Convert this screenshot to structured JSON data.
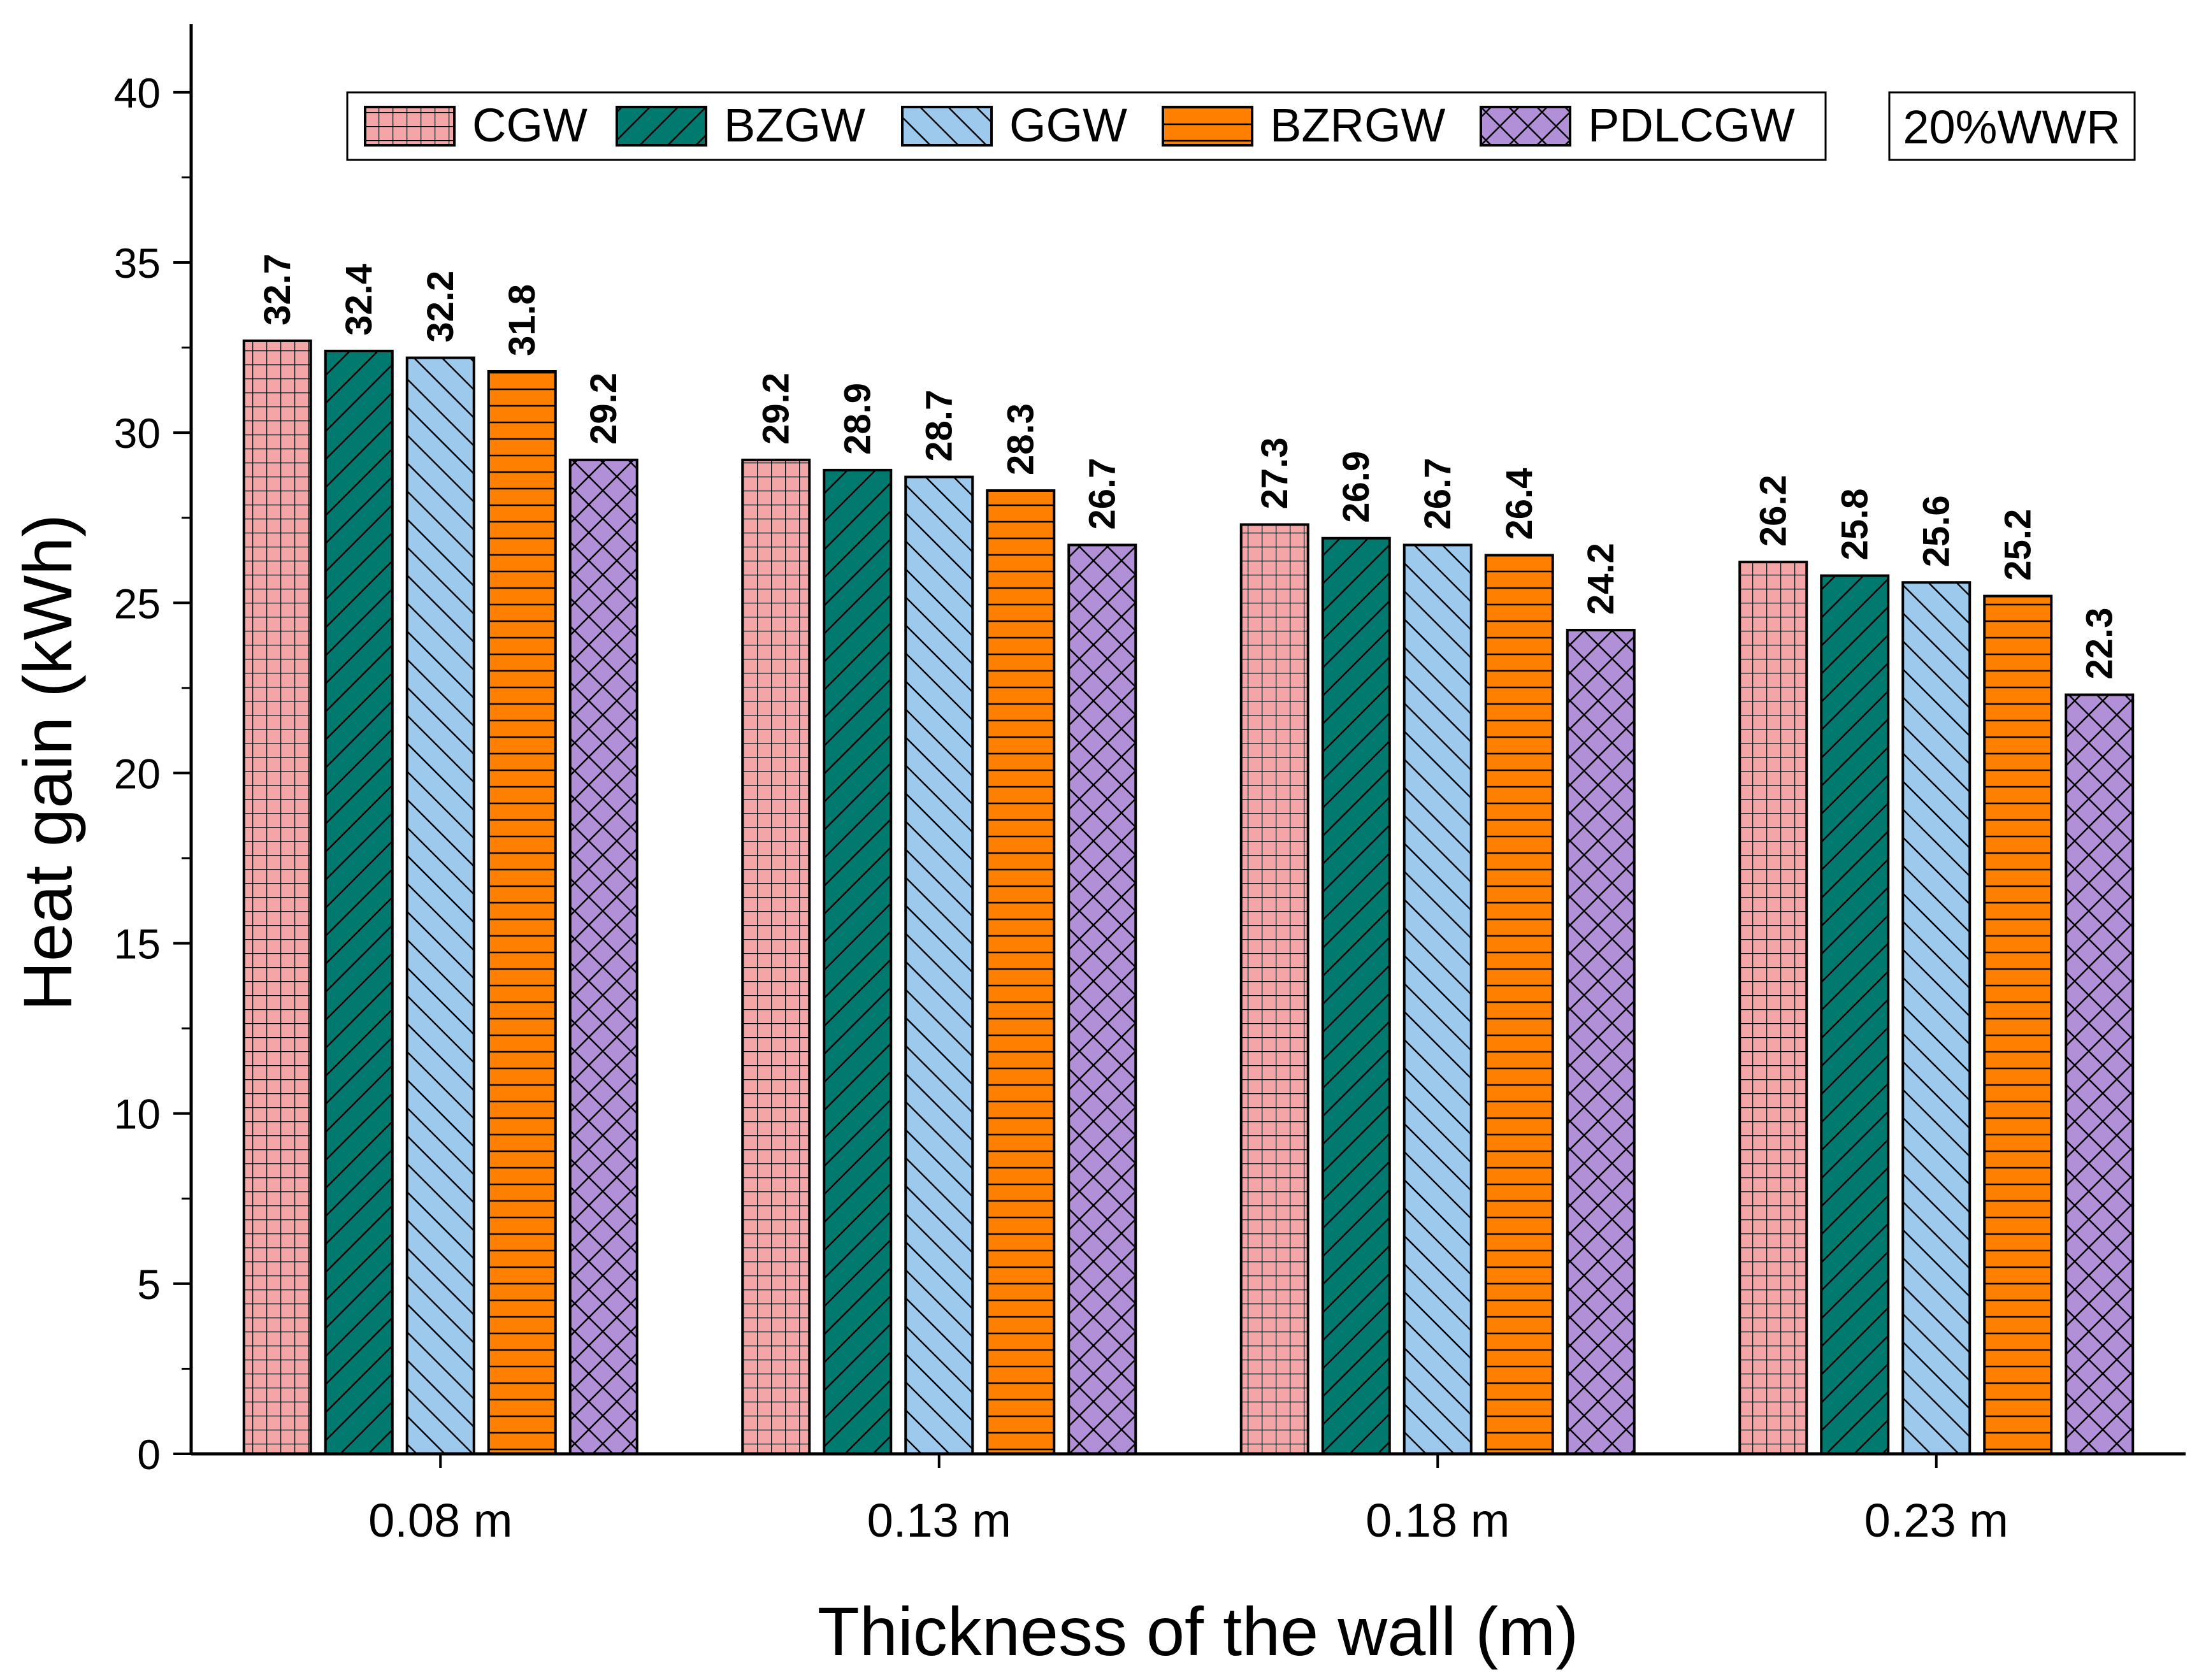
{
  "chart_data": {
    "type": "bar",
    "xlabel": "Thickness of the wall (m)",
    "ylabel": "Heat gain (kWh)",
    "categories": [
      "0.08 m",
      "0.13 m",
      "0.18 m",
      "0.23 m"
    ],
    "ylim": [
      0,
      42
    ],
    "yticks": [
      0,
      5,
      10,
      15,
      20,
      25,
      30,
      35,
      40
    ],
    "grid": false,
    "legend_position": "top",
    "annotation": "20%WWR",
    "series": [
      {
        "name": "CGW",
        "color": "#f4a6a6",
        "pattern": "grid",
        "values": [
          32.7,
          29.2,
          27.3,
          26.2
        ]
      },
      {
        "name": "BZGW",
        "color": "#007a6e",
        "pattern": "diagonal-up",
        "values": [
          32.4,
          28.9,
          26.9,
          25.8
        ]
      },
      {
        "name": "GGW",
        "color": "#9cc9ec",
        "pattern": "diagonal-down",
        "values": [
          32.2,
          28.7,
          26.7,
          25.6
        ]
      },
      {
        "name": "BZRGW",
        "color": "#ff8000",
        "pattern": "horizontal",
        "values": [
          31.8,
          28.3,
          26.4,
          25.2
        ]
      },
      {
        "name": "PDLCGW",
        "color": "#b190d8",
        "pattern": "crosshatch",
        "values": [
          29.2,
          26.7,
          24.2,
          22.3
        ]
      }
    ]
  }
}
